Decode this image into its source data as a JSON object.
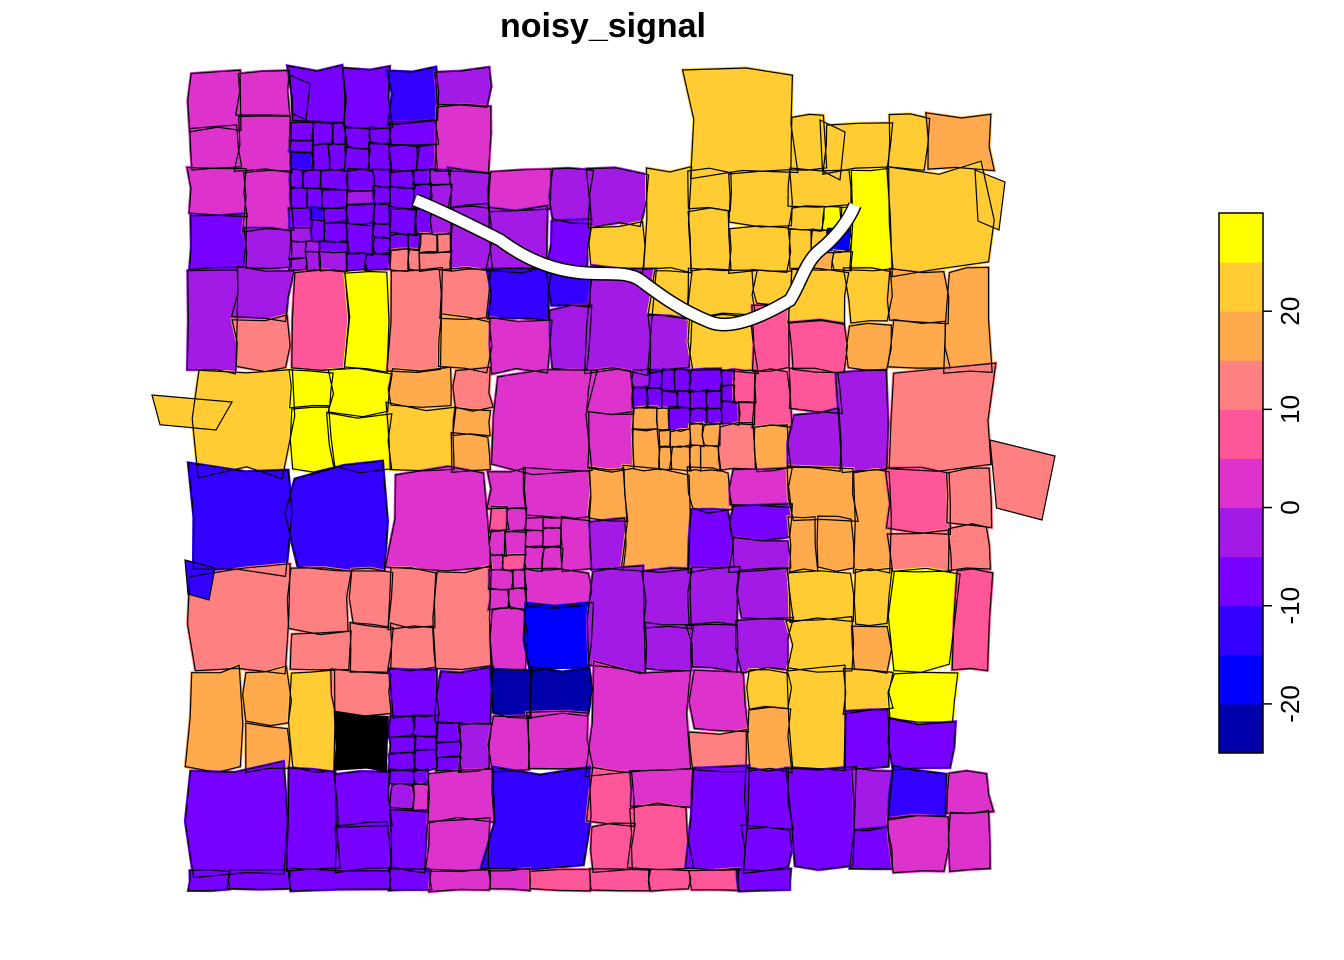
{
  "title": "noisy_signal",
  "legend": {
    "breaks": [
      -25,
      -20,
      -15,
      -10,
      -5,
      0,
      5,
      10,
      15,
      20,
      25,
      30
    ],
    "colors": [
      "#0000AA",
      "#0000FF",
      "#3300FF",
      "#7700FF",
      "#A31AE6",
      "#DD33CC",
      "#FF5599",
      "#FF8080",
      "#FFAA4D",
      "#FFCC33",
      "#FFFF00"
    ],
    "ticks": [
      -20,
      -10,
      0,
      10,
      20
    ],
    "tick_labels": [
      "-20",
      "-10",
      "0",
      "10",
      "20"
    ]
  }
}
